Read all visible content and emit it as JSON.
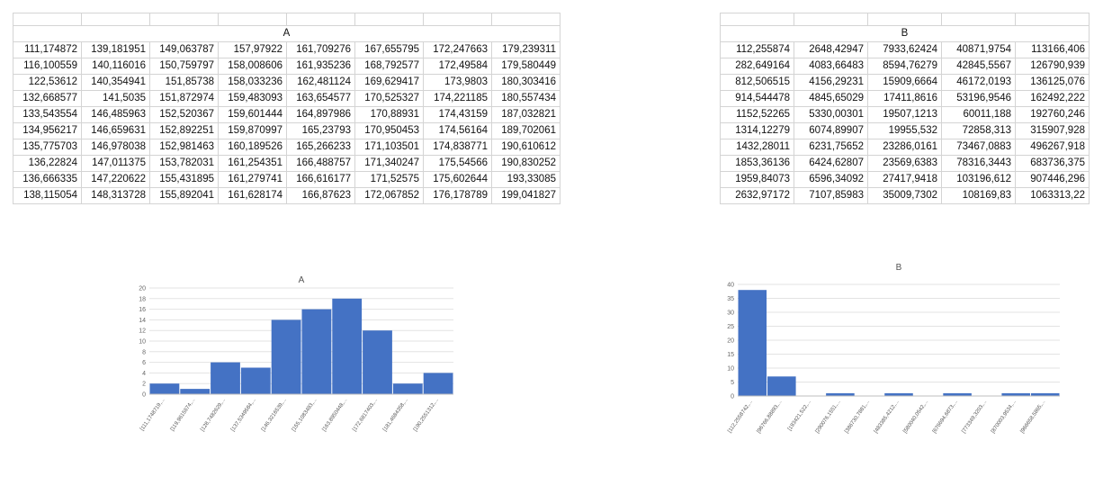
{
  "table_a": {
    "header": "A",
    "rows": [
      [
        "111,174872",
        "139,181951",
        "149,063787",
        "157,97922",
        "161,709276",
        "167,655795",
        "172,247663",
        "179,239311"
      ],
      [
        "116,100559",
        "140,116016",
        "150,759797",
        "158,008606",
        "161,935236",
        "168,792577",
        "172,49584",
        "179,580449"
      ],
      [
        "122,53612",
        "140,354941",
        "151,85738",
        "158,033236",
        "162,481124",
        "169,629417",
        "173,9803",
        "180,303416"
      ],
      [
        "132,668577",
        "141,5035",
        "151,872974",
        "159,483093",
        "163,654577",
        "170,525327",
        "174,221185",
        "180,557434"
      ],
      [
        "133,543554",
        "146,485963",
        "152,520367",
        "159,601444",
        "164,897986",
        "170,88931",
        "174,43159",
        "187,032821"
      ],
      [
        "134,956217",
        "146,659631",
        "152,892251",
        "159,870997",
        "165,23793",
        "170,950453",
        "174,56164",
        "189,702061"
      ],
      [
        "135,775703",
        "146,978038",
        "152,981463",
        "160,189526",
        "165,266233",
        "171,103501",
        "174,838771",
        "190,610612"
      ],
      [
        "136,22824",
        "147,011375",
        "153,782031",
        "161,254351",
        "166,488757",
        "171,340247",
        "175,54566",
        "190,830252"
      ],
      [
        "136,666335",
        "147,220622",
        "155,431895",
        "161,279741",
        "166,616177",
        "171,52575",
        "175,602644",
        "193,33085"
      ],
      [
        "138,115054",
        "148,313728",
        "155,892041",
        "161,628174",
        "166,87623",
        "172,067852",
        "176,178789",
        "199,041827"
      ]
    ]
  },
  "table_b": {
    "header": "B",
    "rows": [
      [
        "112,255874",
        "2648,42947",
        "7933,62424",
        "40871,9754",
        "113166,406"
      ],
      [
        "282,649164",
        "4083,66483",
        "8594,76279",
        "42845,5567",
        "126790,939"
      ],
      [
        "812,506515",
        "4156,29231",
        "15909,6664",
        "46172,0193",
        "136125,076"
      ],
      [
        "914,544478",
        "4845,65029",
        "17411,8616",
        "53196,9546",
        "162492,222"
      ],
      [
        "1152,52265",
        "5330,00301",
        "19507,1213",
        "60011,188",
        "192760,246"
      ],
      [
        "1314,12279",
        "6074,89907",
        "19955,532",
        "72858,313",
        "315907,928"
      ],
      [
        "1432,28011",
        "6231,75652",
        "23286,0161",
        "73467,0883",
        "496267,918"
      ],
      [
        "1853,36136",
        "6424,62807",
        "23569,6383",
        "78316,3443",
        "683736,375"
      ],
      [
        "1959,84073",
        "6596,34092",
        "27417,9418",
        "103196,612",
        "907446,296"
      ],
      [
        "2632,97172",
        "7107,85983",
        "35009,7302",
        "108169,83",
        "1063313,22"
      ]
    ]
  },
  "chart_data": [
    {
      "type": "bar",
      "title": "A",
      "categories": [
        "[111,1748719,...",
        "[119,9615674,...",
        "[128,7482629,...",
        "[137,5349584,...",
        "[146,3216539,...",
        "[155,1083493,...",
        "[163,8950448,...",
        "[172,6817403,...",
        "[181,4684358,...",
        "[190,2551312,..."
      ],
      "values": [
        2,
        1,
        6,
        5,
        14,
        16,
        18,
        12,
        2,
        4
      ],
      "ylim": [
        0,
        20
      ],
      "yticks": [
        0,
        2,
        4,
        6,
        8,
        10,
        12,
        14,
        16,
        18,
        20
      ],
      "grid": true,
      "color": "#4472c4"
    },
    {
      "type": "bar",
      "title": "B",
      "categories": [
        "[112,2558742,...",
        "[96766,88893,...",
        "[193421,522,...",
        "[290076,1551,...",
        "[386730,7881,...",
        "[483385,4212,...",
        "[580040,0542,...",
        "[676694,6873,...",
        "[773349,3203,...",
        "[870003,9534,...",
        "[966658,5865,..."
      ],
      "values": [
        38,
        7,
        0,
        1,
        0,
        1,
        0,
        1,
        0,
        1,
        1
      ],
      "ylim": [
        0,
        40
      ],
      "yticks": [
        0,
        5,
        10,
        15,
        20,
        25,
        30,
        35,
        40
      ],
      "grid": true,
      "color": "#4472c4"
    }
  ]
}
